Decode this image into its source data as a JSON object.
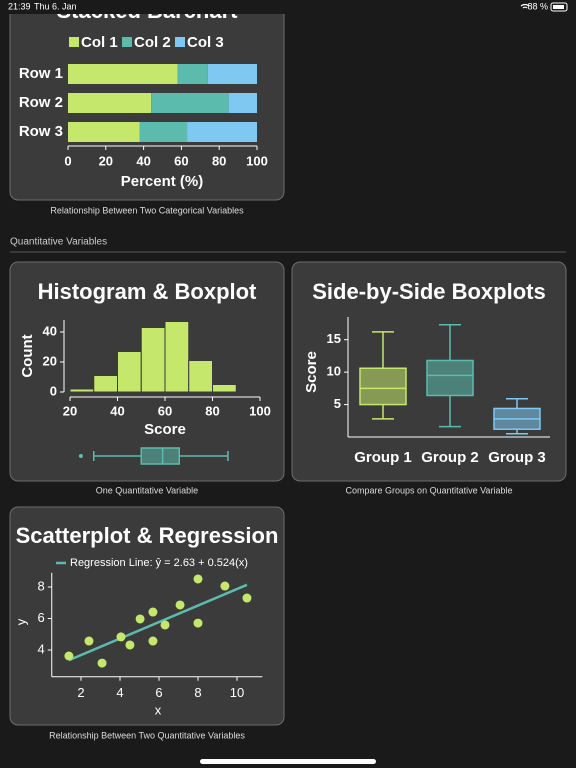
{
  "status_bar": {
    "time": "21:39",
    "date": "Thu 6. Jan",
    "battery": "88 %"
  },
  "section_title": "Quantitative Variables",
  "chart_data": [
    {
      "type": "stacked-barh",
      "title": "Stacked Barchart",
      "xlabel": "Percent (%)",
      "categories": [
        "Row 1",
        "Row 2",
        "Row 3"
      ],
      "series": [
        {
          "name": "Col 1",
          "color": "#c5e86c",
          "values": [
            58,
            44,
            38
          ]
        },
        {
          "name": "Col 2",
          "color": "#5bbcad",
          "values": [
            16,
            41,
            25
          ]
        },
        {
          "name": "Col 3",
          "color": "#7ec8f2",
          "values": [
            26,
            15,
            37
          ]
        }
      ],
      "xlim": [
        0,
        100
      ],
      "xticks": [
        0,
        20,
        40,
        60,
        80,
        100
      ],
      "caption": "Relationship Between Two Categorical Variables"
    },
    {
      "type": "histogram",
      "title": "Histogram & Boxplot",
      "xlabel": "Score",
      "ylabel": "Count",
      "bins": [
        20,
        30,
        40,
        50,
        60,
        70,
        80,
        90
      ],
      "counts": [
        2,
        11,
        27,
        43,
        47,
        21,
        5
      ],
      "color": "#c5e86c",
      "xlim": [
        20,
        100
      ],
      "xticks": [
        20,
        40,
        60,
        80,
        100
      ],
      "ylim": [
        0,
        48
      ],
      "yticks": [
        0,
        20,
        40
      ],
      "boxplot": {
        "min": 30,
        "q1": 50,
        "median": 59,
        "q3": 66,
        "max": 86.5,
        "outliers": [
          24.6
        ],
        "color": "#5bbcad"
      },
      "caption": "One Quantitative Variable"
    },
    {
      "type": "boxplot",
      "title": "Side-by-Side Boxplots",
      "ylabel": "Score",
      "categories": [
        "Group 1",
        "Group 2",
        "Group 3"
      ],
      "colors": [
        "#c5e86c",
        "#5bbcad",
        "#7ec8f2"
      ],
      "boxes": [
        {
          "min": 2.8,
          "q1": 5,
          "median": 7.5,
          "q3": 10.6,
          "max": 16.2
        },
        {
          "min": 1.6,
          "q1": 6.4,
          "median": 9.5,
          "q3": 11.8,
          "max": 17.3
        },
        {
          "min": 0.5,
          "q1": 1.2,
          "median": 2.8,
          "q3": 4.4,
          "max": 5.9
        }
      ],
      "ylim": [
        0,
        18.5
      ],
      "yticks": [
        5,
        10,
        15
      ],
      "caption": "Compare Groups on Quantitative Variable"
    },
    {
      "type": "scatter",
      "title": "Scatterplot & Regression",
      "xlabel": "x",
      "ylabel": "y",
      "x": [
        1.38,
        2.41,
        3.08,
        4.05,
        4.51,
        5.03,
        5.69,
        5.69,
        6.31,
        7.08,
        8.0,
        8.0,
        9.38,
        10.51
      ],
      "values": [
        3.62,
        4.57,
        3.17,
        4.83,
        4.32,
        5.97,
        6.41,
        4.57,
        5.59,
        6.86,
        8.51,
        5.71,
        8.06,
        7.3
      ],
      "color": "#c5e86c",
      "regression": {
        "label": "Regression Line: ŷ = 2.63 + 0.524(x)",
        "intercept": 2.63,
        "slope": 0.524,
        "color": "#5bbcad"
      },
      "xlim": [
        0.5,
        11.3
      ],
      "xticks": [
        2,
        4,
        6,
        8,
        10
      ],
      "ylim": [
        2.3,
        8.9
      ],
      "yticks": [
        4,
        6,
        8
      ],
      "caption": "Relationship Between Two Quantitative Variables"
    }
  ]
}
